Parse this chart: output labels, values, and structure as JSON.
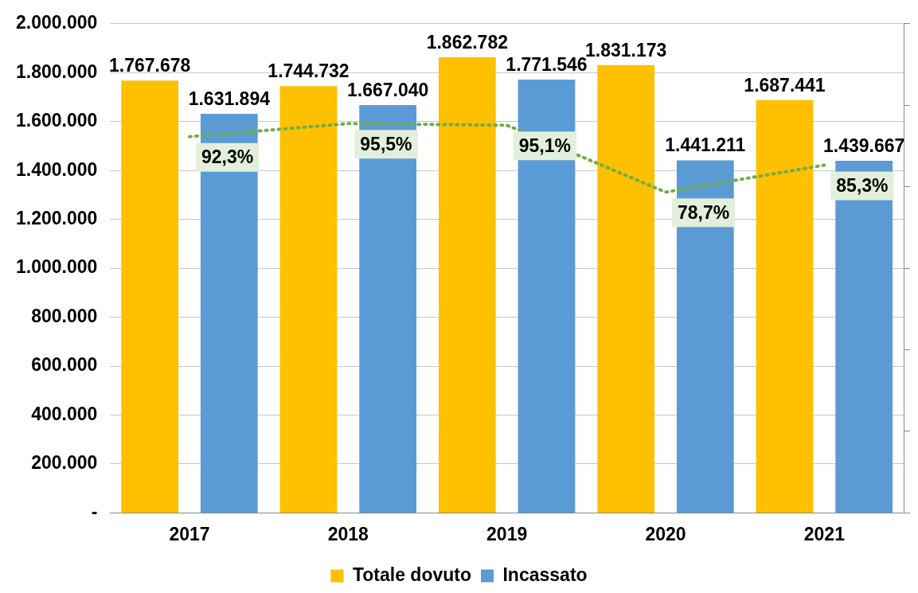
{
  "chart_data": {
    "type": "bar",
    "categories": [
      "2017",
      "2018",
      "2019",
      "2020",
      "2021"
    ],
    "series": [
      {
        "name": "Totale dovuto",
        "color": "#ffc000",
        "values": [
          1767678,
          1744732,
          1862782,
          1831173,
          1687441
        ],
        "value_labels": [
          "1.767.678",
          "1.744.732",
          "1.862.782",
          "1.831.173",
          "1.687.441"
        ]
      },
      {
        "name": "Incassato",
        "color": "#5b9bd5",
        "values": [
          1631894,
          1667040,
          1771546,
          1441211,
          1439667
        ],
        "value_labels": [
          "1.631.894",
          "1.667.040",
          "1.771.546",
          "1.441.211",
          "1.439.667"
        ]
      },
      {
        "type": "line",
        "axis": "y2",
        "color": "#70ad47",
        "values": [
          92.3,
          95.5,
          95.1,
          78.7,
          85.3
        ],
        "value_labels": [
          "92,3%",
          "95,5%",
          "95,1%",
          "78,7%",
          "85,3%"
        ]
      }
    ],
    "ylim": [
      0,
      2000000
    ],
    "yticks": [
      {
        "value": 0,
        "label": "-"
      },
      {
        "value": 200000,
        "label": "200.000"
      },
      {
        "value": 400000,
        "label": "400.000"
      },
      {
        "value": 600000,
        "label": "600.000"
      },
      {
        "value": 800000,
        "label": "800.000"
      },
      {
        "value": 1000000,
        "label": "1.000.000"
      },
      {
        "value": 1200000,
        "label": "1.200.000"
      },
      {
        "value": 1400000,
        "label": "1.400.000"
      },
      {
        "value": 1600000,
        "label": "1.600.000"
      },
      {
        "value": 1800000,
        "label": "1.800.000"
      },
      {
        "value": 2000000,
        "label": "2.000.000"
      }
    ],
    "y2lim": [
      0,
      120
    ],
    "y2ticks": [
      {
        "value": 0,
        "label": null
      },
      {
        "value": 20,
        "label": null
      },
      {
        "value": 40,
        "label": null
      },
      {
        "value": 60,
        "label": null
      },
      {
        "value": 80,
        "label": null
      },
      {
        "value": 100,
        "label": null
      },
      {
        "value": 120,
        "label": null
      }
    ],
    "grid": "y",
    "legend": "bottom",
    "marker": "none",
    "line_style": "dotted"
  }
}
